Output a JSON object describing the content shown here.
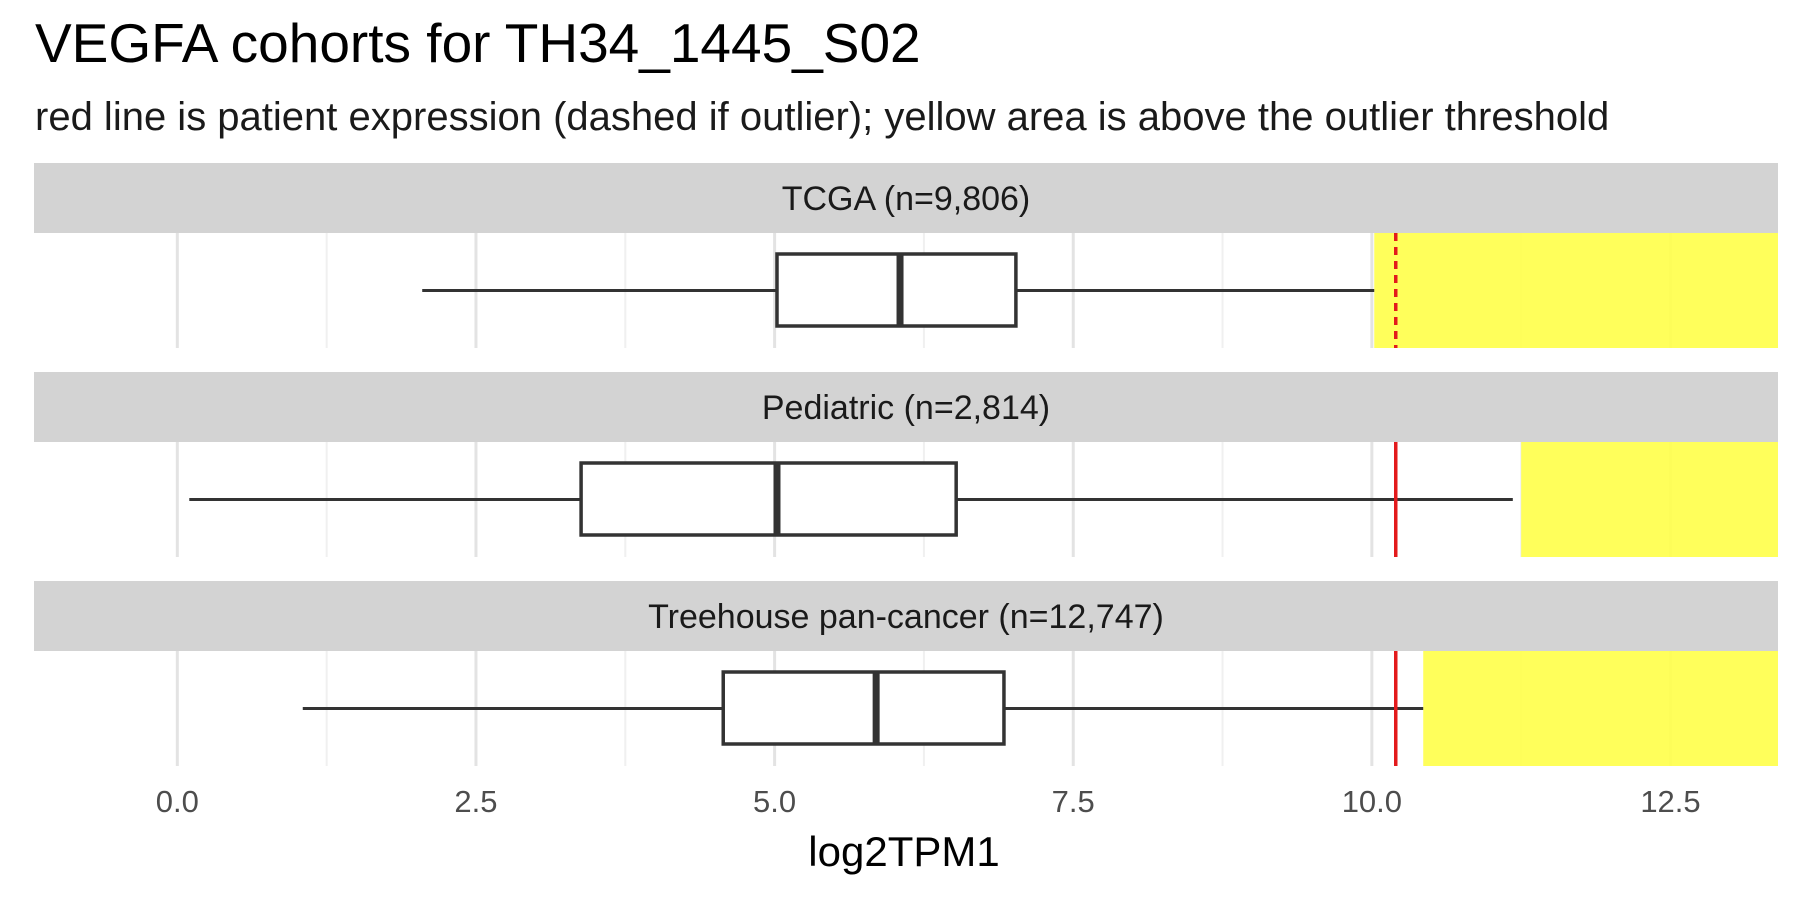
{
  "chart_data": {
    "type": "boxplot",
    "title": "VEGFA cohorts for TH34_1445_S02",
    "subtitle": "red line is patient expression (dashed if outlier); yellow area is above the outlier threshold",
    "xlabel": "log2TPM1",
    "xlim": [
      -1.2,
      13.4
    ],
    "xticks": [
      0.0,
      2.5,
      5.0,
      7.5,
      10.0,
      12.5
    ],
    "xtick_labels": [
      "0.0",
      "2.5",
      "5.0",
      "7.5",
      "10.0",
      "12.5"
    ],
    "patient_expression": 10.2,
    "colors": {
      "patient_line": "#e31a1c",
      "outlier_area": "#ffff4d",
      "strip_background": "#d3d3d3",
      "grid": "#e6e6e6",
      "box_stroke": "#333333"
    },
    "panels": [
      {
        "label": "TCGA (n=9,806)",
        "whisker_low": 2.05,
        "q1": 5.02,
        "median": 6.05,
        "q3": 7.02,
        "whisker_high": 10.02,
        "outlier_threshold": 10.02,
        "patient_is_outlier": true
      },
      {
        "label": "Pediatric (n=2,814)",
        "whisker_low": 0.1,
        "q1": 3.38,
        "median": 5.02,
        "q3": 6.52,
        "whisker_high": 11.18,
        "outlier_threshold": 11.25,
        "patient_is_outlier": false
      },
      {
        "label": "Treehouse pan-cancer (n=12,747)",
        "whisker_low": 1.05,
        "q1": 4.57,
        "median": 5.85,
        "q3": 6.92,
        "whisker_high": 10.43,
        "outlier_threshold": 10.43,
        "patient_is_outlier": false
      }
    ]
  }
}
